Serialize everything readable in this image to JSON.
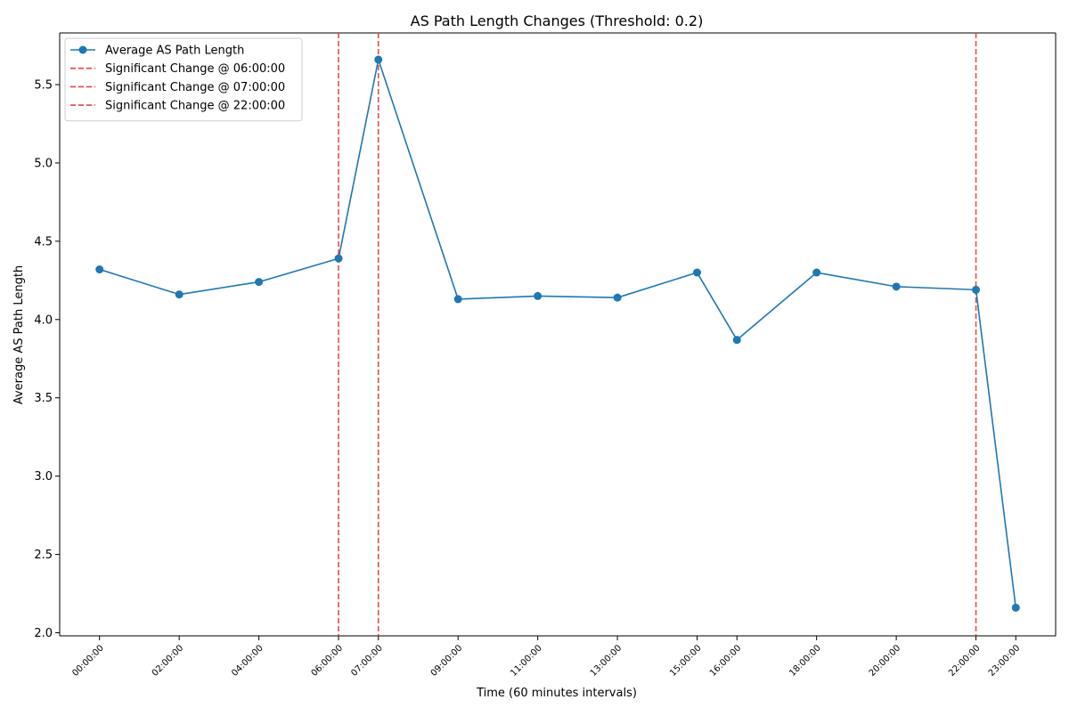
{
  "chart_data": {
    "type": "line",
    "title": "AS Path Length Changes (Threshold: 0.2)",
    "xlabel": "Time (60 minutes intervals)",
    "ylabel": "Average AS Path Length",
    "x": [
      "00:00:00",
      "02:00:00",
      "04:00:00",
      "06:00:00",
      "07:00:00",
      "09:00:00",
      "11:00:00",
      "13:00:00",
      "15:00:00",
      "16:00:00",
      "18:00:00",
      "20:00:00",
      "22:00:00",
      "23:00:00"
    ],
    "x_hours": [
      0,
      2,
      4,
      6,
      7,
      9,
      11,
      13,
      15,
      16,
      18,
      20,
      22,
      23
    ],
    "series": [
      {
        "name": "Average AS Path Length",
        "color": "#1f77b4",
        "marker": "circle",
        "values": [
          4.32,
          4.16,
          4.24,
          4.39,
          5.66,
          4.13,
          4.15,
          4.14,
          4.3,
          3.87,
          4.3,
          4.21,
          4.19,
          2.16
        ]
      }
    ],
    "vlines": [
      {
        "label": "Significant Change @ 06:00:00",
        "x": "06:00:00",
        "x_hour": 6,
        "color": "#e8413f",
        "style": "dashed"
      },
      {
        "label": "Significant Change @ 07:00:00",
        "x": "07:00:00",
        "x_hour": 7,
        "color": "#e8413f",
        "style": "dashed"
      },
      {
        "label": "Significant Change @ 22:00:00",
        "x": "22:00:00",
        "x_hour": 22,
        "color": "#e8413f",
        "style": "dashed"
      }
    ],
    "yticks": [
      "2.0",
      "2.5",
      "3.0",
      "3.5",
      "4.0",
      "4.5",
      "5.0",
      "5.5"
    ],
    "ylim": [
      1.98,
      5.83
    ],
    "xlim": [
      -1.0,
      24.0
    ],
    "grid": false,
    "legend_position": "top-left"
  }
}
